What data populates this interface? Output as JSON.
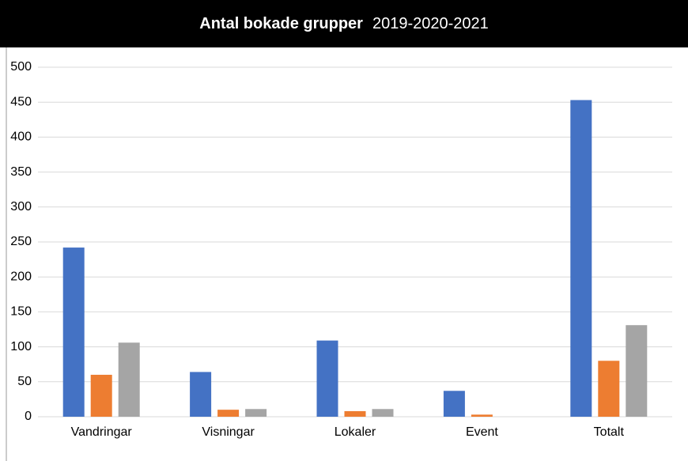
{
  "chart_data": {
    "type": "bar",
    "title": "Antal bokade grupper",
    "subtitle": "2019-2020-2021",
    "categories": [
      "Vandringar",
      "Visningar",
      "Lokaler",
      "Event",
      "Totalt"
    ],
    "series": [
      {
        "color": "#4472c4",
        "values": [
          242,
          64,
          109,
          37,
          453
        ]
      },
      {
        "color": "#ed7d31",
        "values": [
          60,
          10,
          8,
          3,
          80
        ]
      },
      {
        "color": "#a5a5a5",
        "values": [
          106,
          11,
          11,
          0,
          131
        ]
      }
    ],
    "ylim": [
      0,
      500
    ],
    "yticks": [
      0,
      50,
      100,
      150,
      200,
      250,
      300,
      350,
      400,
      450,
      500
    ],
    "grid": true
  }
}
